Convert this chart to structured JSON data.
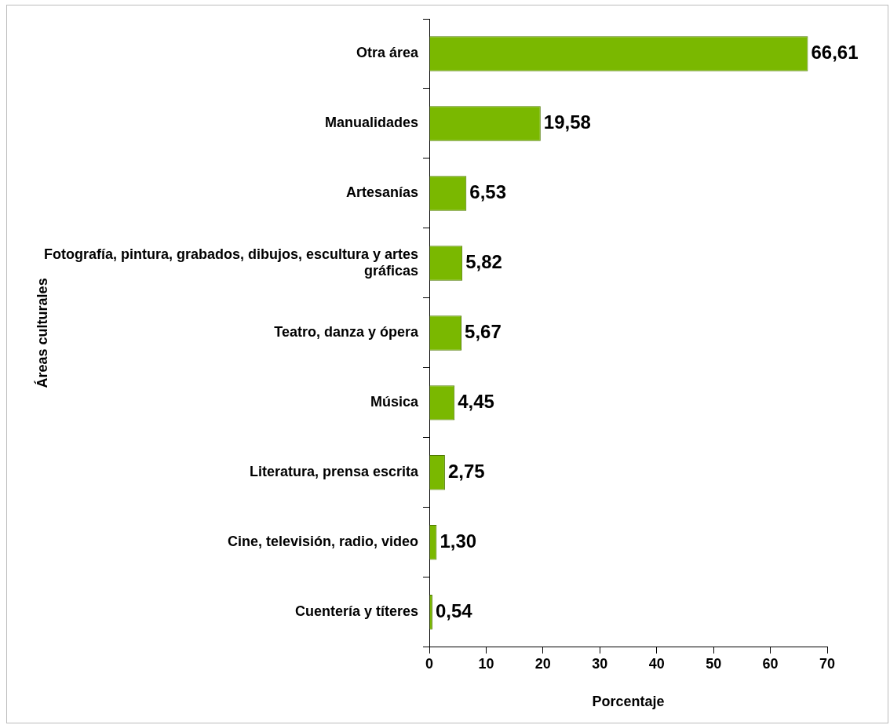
{
  "chart_data": {
    "type": "bar",
    "orientation": "horizontal",
    "xlabel": "Porcentaje",
    "ylabel": "Áreas culturales",
    "categories": [
      "Otra área",
      "Manualidades",
      "Artesanías",
      "Fotografía, pintura, grabados, dibujos, escultura y artes gráficas",
      "Teatro, danza y ópera",
      "Música",
      "Literatura, prensa escrita",
      "Cine, televisión, radio, video",
      "Cuentería y títeres"
    ],
    "values": [
      66.61,
      19.58,
      6.53,
      5.82,
      5.67,
      4.45,
      2.75,
      1.3,
      0.54
    ],
    "value_labels": [
      "66,61",
      "19,58",
      "6,53",
      "5,82",
      "5,67",
      "4,45",
      "2,75",
      "1,30",
      "0,54"
    ],
    "color": "#7ab800",
    "xlim": [
      0,
      70
    ],
    "xticks": [
      0,
      10,
      20,
      30,
      40,
      50,
      60,
      70
    ],
    "grid": false,
    "legend": false
  }
}
